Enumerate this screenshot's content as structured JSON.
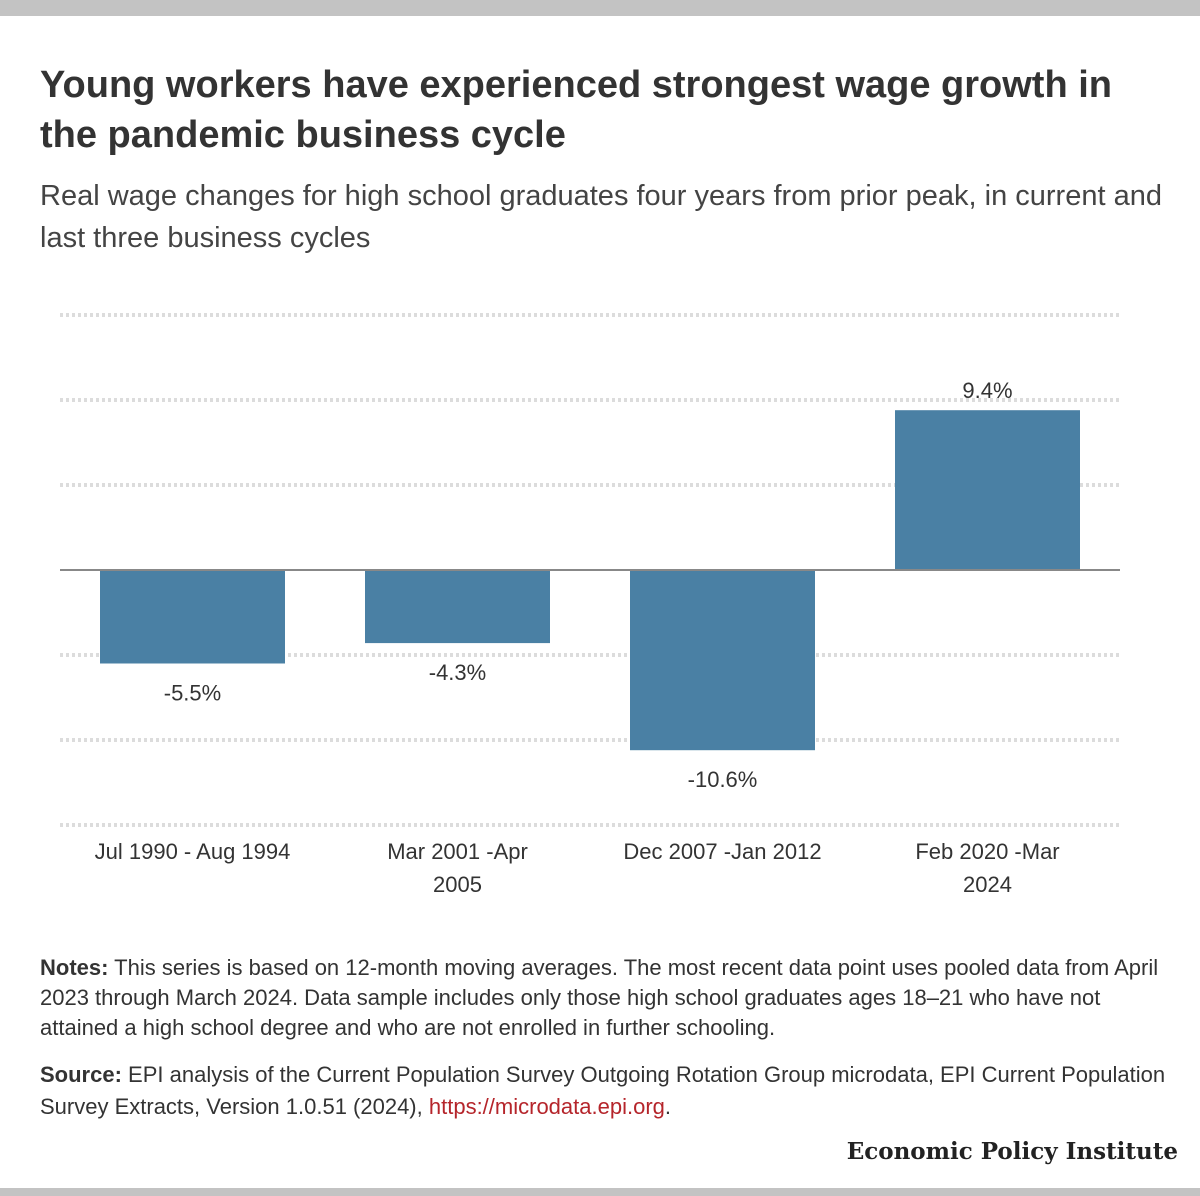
{
  "title": "Young workers have experienced strongest wage growth in the pandemic business cycle",
  "subtitle": "Real wage changes for high school graduates four years from prior peak, in current and last three business cycles",
  "notes": {
    "label": "Notes:",
    "text": "This series is based on 12-month moving averages. The most recent data point uses pooled data from April 2023 through March 2024. Data sample includes only those high school graduates ages 18–21 who have not attained a high school degree and who are not enrolled in further schooling."
  },
  "source": {
    "label": "Source:",
    "text": "EPI analysis of the Current Population Survey Outgoing Rotation Group microdata, EPI Current Population Survey Extracts, Version 1.0.51 (2024),",
    "link": "https://microdata.epi.org",
    "end": "."
  },
  "brand": "Economic Policy Institute",
  "colors": {
    "bar": "#4a80a4",
    "grid": "#dcdcdc",
    "zero": "#888888"
  },
  "chart_data": {
    "type": "bar",
    "title": "Young workers have experienced strongest wage growth in the pandemic business cycle",
    "categories": [
      [
        "Jul 1990 - Aug 1994"
      ],
      [
        "Mar 2001 -Apr",
        "2005"
      ],
      [
        "Dec 2007 -Jan 2012"
      ],
      [
        "Feb 2020 -Mar",
        "2024"
      ]
    ],
    "values": [
      -5.5,
      -4.3,
      -10.6,
      9.4
    ],
    "labels": [
      "-5.5%",
      "-4.3%",
      "-10.6%",
      "9.4%"
    ],
    "ylim": [
      -15,
      15
    ],
    "grid_step": 5,
    "xlabel": "",
    "ylabel": "",
    "grid": true
  }
}
